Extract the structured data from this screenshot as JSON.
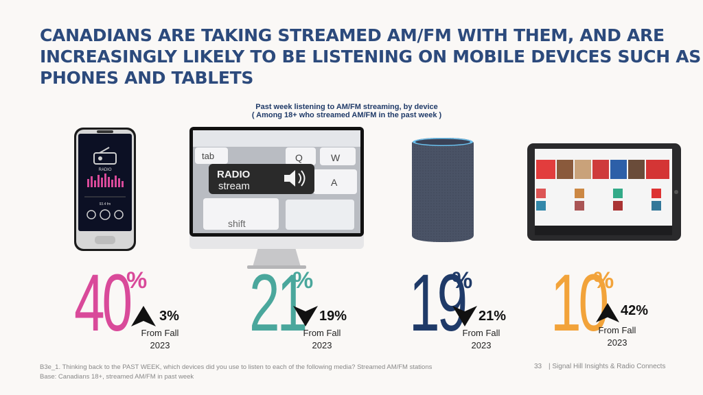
{
  "title_lines": [
    "CANADIANS ARE TAKING STREAMED AM/FM  WITH THEM, AND ARE",
    "INCREASINGLY LIKELY TO  BE LISTENING ON MOBILE DEVICES SUCH AS",
    "PHONES AND TABLETS"
  ],
  "subtitle_lines": [
    "Past week listening to AM/FM streaming, by device",
    "( Among 18+ who streamed AM/FM in the past week )"
  ],
  "devices": {
    "phone": {
      "icon": "smartphone-icon",
      "screen_label": "RADIO",
      "freq": "93.4 fm"
    },
    "computer": {
      "icon": "desktop-monitor-icon",
      "key_label_1": "RADIO",
      "key_label_2": "stream",
      "key_tab": "tab",
      "key_q": "Q",
      "key_w": "W",
      "key_a": "A",
      "key_shift": "shift"
    },
    "speaker": {
      "icon": "smart-speaker-icon"
    },
    "tablet": {
      "icon": "tablet-icon"
    }
  },
  "stats": [
    {
      "value": "40",
      "suffix": "%",
      "change": "3%",
      "direction": "up",
      "from_line1": "From Fall",
      "from_line2": "2023",
      "color": "#d94a9a"
    },
    {
      "value": "21",
      "suffix": "%",
      "change": "19%",
      "direction": "down",
      "from_line1": "From Fall",
      "from_line2": "2023",
      "color": "#4aa79c"
    },
    {
      "value": "19",
      "suffix": "%",
      "change": "21%",
      "direction": "down",
      "from_line1": "From Fall",
      "from_line2": "2023",
      "color": "#1f3a68"
    },
    {
      "value": "10",
      "suffix": "%",
      "change": "42%",
      "direction": "up",
      "from_line1": "From Fall",
      "from_line2": "2023",
      "color": "#f2a33a"
    }
  ],
  "footnote_lines": [
    "B3e_1. Thinking back to the PAST WEEK, which devices did you use to listen to each of the following media?  Streamed AM/FM stations",
    "Base:  Canadians 18+, streamed AM/FM in past week"
  ],
  "page_number": "33",
  "source": "| Signal Hill Insights & Radio Connects"
}
